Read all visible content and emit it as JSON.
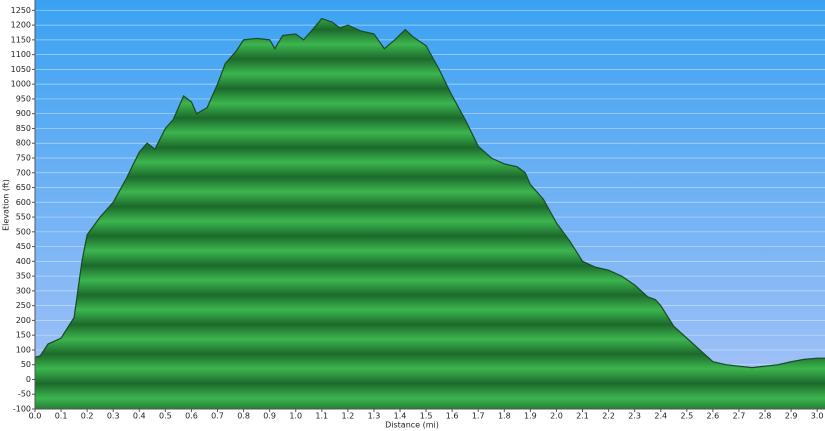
{
  "chart_data": {
    "type": "area",
    "xlabel": "Distance   (mi)",
    "ylabel": "Elevation (ft)",
    "x": [
      0.0,
      0.02,
      0.05,
      0.1,
      0.15,
      0.18,
      0.2,
      0.25,
      0.3,
      0.35,
      0.4,
      0.43,
      0.46,
      0.5,
      0.53,
      0.57,
      0.6,
      0.62,
      0.66,
      0.7,
      0.73,
      0.77,
      0.8,
      0.85,
      0.9,
      0.92,
      0.95,
      1.0,
      1.03,
      1.06,
      1.1,
      1.14,
      1.17,
      1.2,
      1.25,
      1.3,
      1.34,
      1.38,
      1.42,
      1.45,
      1.5,
      1.55,
      1.6,
      1.65,
      1.7,
      1.75,
      1.8,
      1.85,
      1.88,
      1.9,
      1.95,
      2.0,
      2.05,
      2.1,
      2.15,
      2.2,
      2.25,
      2.3,
      2.35,
      2.38,
      2.4,
      2.45,
      2.5,
      2.55,
      2.6,
      2.65,
      2.7,
      2.75,
      2.8,
      2.85,
      2.9,
      2.95,
      3.0,
      3.03
    ],
    "values": [
      75,
      80,
      120,
      140,
      210,
      400,
      490,
      550,
      600,
      680,
      770,
      800,
      780,
      850,
      880,
      960,
      940,
      900,
      920,
      1000,
      1070,
      1110,
      1150,
      1155,
      1150,
      1120,
      1165,
      1170,
      1150,
      1180,
      1222,
      1210,
      1190,
      1200,
      1180,
      1170,
      1120,
      1150,
      1185,
      1160,
      1130,
      1050,
      960,
      880,
      790,
      750,
      730,
      720,
      700,
      660,
      610,
      530,
      470,
      400,
      380,
      370,
      350,
      320,
      280,
      270,
      250,
      180,
      140,
      100,
      60,
      50,
      45,
      40,
      45,
      50,
      60,
      68,
      72,
      72
    ],
    "color": "#2a9a3c",
    "line_color": "#1b4a22",
    "xlim": [
      0,
      3.03
    ],
    "ylim": [
      -100,
      1285
    ],
    "xticks": [
      {
        "value": 0,
        "label": "0.0"
      },
      0.1,
      0.2,
      0.3,
      0.4,
      0.5,
      0.6,
      0.7,
      0.8,
      0.9,
      {
        "value": 1,
        "label": "1.0"
      },
      1.1,
      1.2,
      1.3,
      1.4,
      1.5,
      1.6,
      1.7,
      1.8,
      1.9,
      {
        "value": 2,
        "label": "2.0"
      },
      2.1,
      2.2,
      2.3,
      2.4,
      2.5,
      2.6,
      2.7,
      2.8,
      2.9,
      {
        "value": 3,
        "label": "3.0"
      }
    ],
    "yticks": [
      -100,
      -50,
      0,
      50,
      100,
      150,
      200,
      250,
      300,
      350,
      400,
      450,
      500,
      550,
      600,
      650,
      700,
      750,
      800,
      850,
      900,
      950,
      1000,
      1050,
      1100,
      1150,
      1200,
      1250
    ],
    "grid": true
  }
}
